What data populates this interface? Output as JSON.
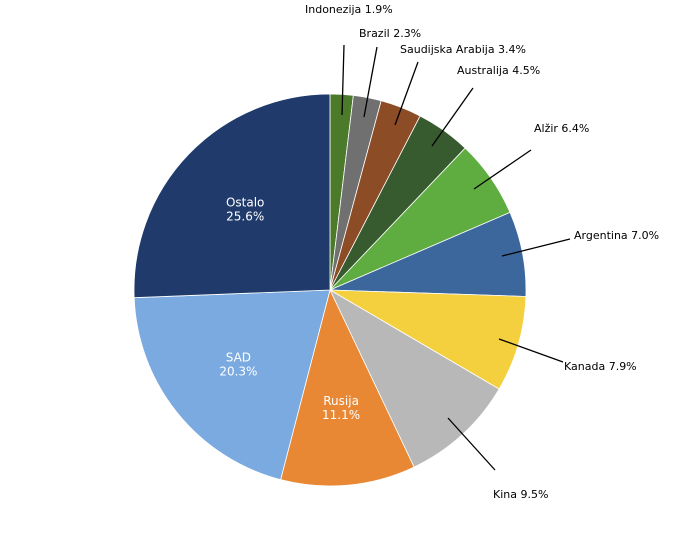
{
  "chart_data": {
    "type": "pie",
    "title": "",
    "slices": [
      {
        "label": "Indonezija",
        "value": 1.9,
        "pct_text": "1.9%",
        "color": "#4a7a2a",
        "inside": false
      },
      {
        "label": "Brazil",
        "value": 2.3,
        "pct_text": "2.3%",
        "color": "#707070",
        "inside": false
      },
      {
        "label": "Saudijska Arabija",
        "value": 3.4,
        "pct_text": "3.4%",
        "color": "#8b4c26",
        "inside": false
      },
      {
        "label": "Australija",
        "value": 4.5,
        "pct_text": "4.5%",
        "color": "#375a2e",
        "inside": false
      },
      {
        "label": "Alžir",
        "value": 6.4,
        "pct_text": "6.4%",
        "color": "#5fad41",
        "inside": false
      },
      {
        "label": "Argentina",
        "value": 7.0,
        "pct_text": "7.0%",
        "color": "#3b679c",
        "inside": false
      },
      {
        "label": "Kanada",
        "value": 7.9,
        "pct_text": "7.9%",
        "color": "#f4d03f",
        "inside": false
      },
      {
        "label": "Kina",
        "value": 9.5,
        "pct_text": "9.5%",
        "color": "#b8b8b8",
        "inside": false
      },
      {
        "label": "Rusija",
        "value": 11.1,
        "pct_text": "11.1%",
        "color": "#e88835",
        "inside": true
      },
      {
        "label": "SAD",
        "value": 20.3,
        "pct_text": "20.3%",
        "color": "#7aaae0",
        "inside": true
      },
      {
        "label": "Ostalo",
        "value": 25.6,
        "pct_text": "25.6%",
        "color": "#1f3a6b",
        "inside": true
      }
    ],
    "start_angle": "12 o'clock",
    "direction": "clockwise",
    "legend": "none"
  }
}
